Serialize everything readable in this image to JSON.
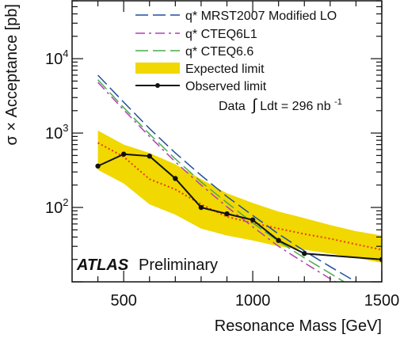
{
  "chart_data": {
    "type": "line",
    "xlabel": "Resonance Mass [GeV]",
    "ylabel": "σ × Acceptance [pb]",
    "xlim": [
      300,
      1500
    ],
    "ylim": [
      10,
      60000
    ],
    "y_scale": "log",
    "x_ticks": [
      500,
      1000,
      1500
    ],
    "y_ticks": [
      {
        "value": 100,
        "base": "10",
        "exp": "2"
      },
      {
        "value": 1000,
        "base": "10",
        "exp": "3"
      },
      {
        "value": 10000,
        "base": "10",
        "exp": "4"
      }
    ],
    "legend_position": "top-right",
    "series": [
      {
        "name": "q* MRST2007 Modified LO",
        "style": "dashed",
        "color": "#1f4fa0",
        "x": [
          400,
          500,
          600,
          700,
          800,
          900,
          1000,
          1100,
          1200,
          1300,
          1400
        ],
        "y": [
          6000,
          2600,
          1150,
          540,
          270,
          140,
          78,
          44,
          26,
          16,
          10
        ]
      },
      {
        "name": "q* CTEQ6L1",
        "style": "dashdot",
        "color": "#b43fb4",
        "x": [
          400,
          500,
          600,
          700,
          800,
          900,
          1000,
          1100,
          1200,
          1300,
          1400
        ],
        "y": [
          4800,
          2050,
          900,
          410,
          200,
          102,
          55,
          30,
          18,
          11,
          7
        ]
      },
      {
        "name": "q* CTEQ6.6",
        "style": "dashed",
        "color": "#4caa4c",
        "x": [
          400,
          500,
          600,
          700,
          800,
          900,
          1000,
          1100,
          1200,
          1300,
          1400
        ],
        "y": [
          5200,
          2200,
          970,
          450,
          220,
          116,
          62,
          35,
          21,
          13,
          8
        ]
      },
      {
        "name": "Expected limit",
        "style": "band",
        "color": "#f0d800",
        "median_color": "#e83a1a",
        "x": [
          400,
          500,
          600,
          700,
          800,
          900,
          1000,
          1100,
          1200,
          1300,
          1400,
          1500
        ],
        "median": [
          740,
          480,
          240,
          175,
          110,
          75,
          62,
          52,
          44,
          38,
          32,
          27
        ],
        "lower": [
          320,
          210,
          110,
          80,
          52,
          42,
          36,
          30,
          27,
          24,
          21,
          18
        ],
        "upper": [
          1080,
          700,
          540,
          380,
          240,
          155,
          115,
          88,
          72,
          58,
          48,
          42
        ]
      },
      {
        "name": "Observed limit",
        "style": "line-markers",
        "color": "#111111",
        "x": [
          400,
          500,
          600,
          700,
          800,
          900,
          1000,
          1100,
          1200,
          1500
        ],
        "y": [
          360,
          520,
          490,
          245,
          100,
          82,
          68,
          36,
          24,
          20
        ]
      }
    ],
    "annotations": {
      "data_prefix": "Data",
      "integral_symbol": "∫",
      "data_body": "Ldt = 296 nb",
      "data_exp": "-1",
      "atlas": "ATLAS",
      "preliminary": "Preliminary"
    }
  }
}
